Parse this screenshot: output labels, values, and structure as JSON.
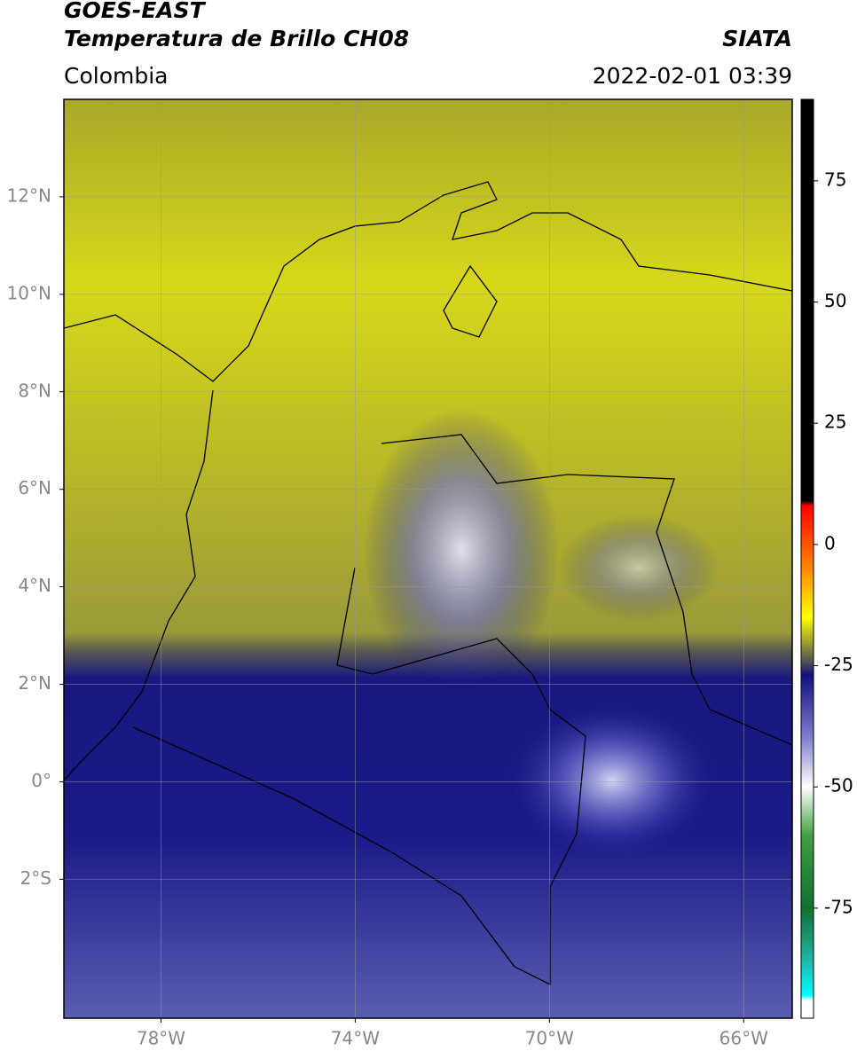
{
  "chart_data": {
    "type": "map",
    "title": "GOES-EAST",
    "subtitle": "Temperatura de Brillo CH08",
    "source": "SIATA",
    "region": "Colombia",
    "timestamp": "2022-02-01 03:39",
    "xlim": [
      -80,
      -65
    ],
    "ylim": [
      -4.85,
      14
    ],
    "xticks": [
      {
        "value": -78,
        "label": "78°W"
      },
      {
        "value": -74,
        "label": "74°W"
      },
      {
        "value": -70,
        "label": "70°W"
      },
      {
        "value": -66,
        "label": "66°W"
      }
    ],
    "yticks": [
      {
        "value": 12,
        "label": "12°N"
      },
      {
        "value": 10,
        "label": "10°N"
      },
      {
        "value": 8,
        "label": "8°N"
      },
      {
        "value": 6,
        "label": "6°N"
      },
      {
        "value": 4,
        "label": "4°N"
      },
      {
        "value": 2,
        "label": "2°N"
      },
      {
        "value": 0,
        "label": "0°"
      },
      {
        "value": -2,
        "label": "2°S"
      }
    ],
    "grid": true,
    "colorbar": {
      "lim": [
        -97.7,
        91.8
      ],
      "ticks": [
        75,
        50,
        25,
        0,
        -25,
        -50,
        -75
      ],
      "stops": [
        {
          "value": 9,
          "color": "#000000"
        },
        {
          "value": 8,
          "color": "#ff0000"
        },
        {
          "value": -5,
          "color": "#ff8800"
        },
        {
          "value": -15,
          "color": "#ffff00"
        },
        {
          "value": -20,
          "color": "#a0a030"
        },
        {
          "value": -24,
          "color": "#555555"
        },
        {
          "value": -27,
          "color": "#101080"
        },
        {
          "value": -40,
          "color": "#8080d0"
        },
        {
          "value": -50,
          "color": "#ffffff"
        },
        {
          "value": -60,
          "color": "#40a040"
        },
        {
          "value": -75,
          "color": "#107030"
        },
        {
          "value": -85,
          "color": "#20b0a0"
        },
        {
          "value": -93,
          "color": "#00ffff"
        },
        {
          "value": -94,
          "color": "#ffffff"
        }
      ]
    }
  }
}
